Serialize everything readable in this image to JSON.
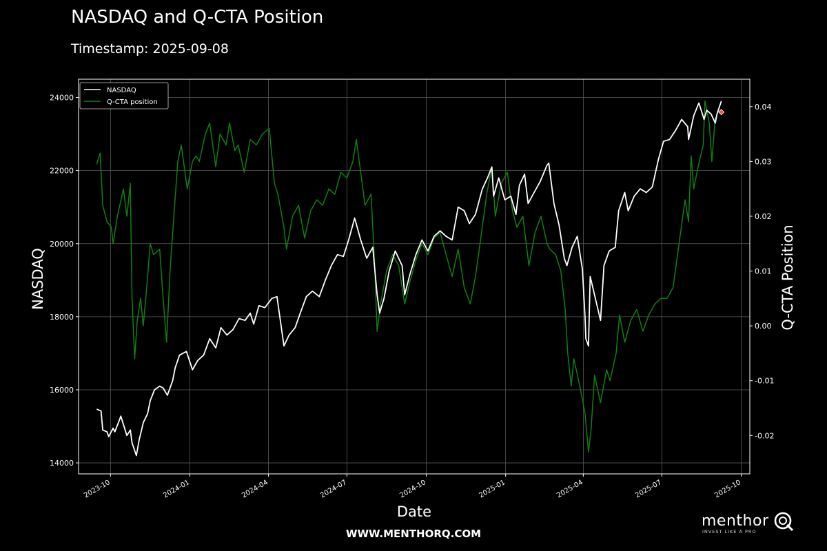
{
  "header": {
    "title": "NASDAQ and Q-CTA Position",
    "subtitle": "Timestamp: 2025-09-08"
  },
  "footer": {
    "url": "WWW.MENTHORQ.COM",
    "brand_name": "menthor",
    "brand_tagline": "INVEST LIKE A PRO"
  },
  "colors": {
    "background": "#000000",
    "nasdaq": "#ffffff",
    "cta": "#108010",
    "grid": "#5a5a5a",
    "marker": "#e8574f"
  },
  "chart_data": {
    "type": "line",
    "xlabel": "Date",
    "ylabel_left": "NASDAQ",
    "ylabel_right": "Q-CTA Position",
    "x_range": [
      "2023-08-25",
      "2025-10-11"
    ],
    "ylim_left": [
      13700,
      24500
    ],
    "ylim_right": [
      -0.027,
      0.045
    ],
    "x_ticks": [
      "2023-10",
      "2024-01",
      "2024-04",
      "2024-07",
      "2024-10",
      "2025-01",
      "2025-04",
      "2025-07",
      "2025-10"
    ],
    "y_ticks_left": [
      "14000",
      "16000",
      "18000",
      "20000",
      "22000",
      "24000"
    ],
    "y_ticks_right": [
      "-0.02",
      "-0.01",
      "0.00",
      "0.01",
      "0.02",
      "0.03",
      "0.04"
    ],
    "grid": true,
    "legend": {
      "position": "top-left",
      "entries": [
        "NASDAQ",
        "Q-CTA position"
      ]
    },
    "series": [
      {
        "name": "NASDAQ",
        "axis": "left",
        "points": [
          [
            "2023-09-15",
            15470
          ],
          [
            "2023-09-20",
            15420
          ],
          [
            "2023-09-22",
            14900
          ],
          [
            "2023-09-27",
            14850
          ],
          [
            "2023-09-29",
            14720
          ],
          [
            "2023-10-04",
            14950
          ],
          [
            "2023-10-06",
            14850
          ],
          [
            "2023-10-11",
            15150
          ],
          [
            "2023-10-13",
            15280
          ],
          [
            "2023-10-18",
            14900
          ],
          [
            "2023-10-20",
            14750
          ],
          [
            "2023-10-24",
            14900
          ],
          [
            "2023-10-26",
            14550
          ],
          [
            "2023-10-31",
            14200
          ],
          [
            "2023-11-03",
            14600
          ],
          [
            "2023-11-08",
            15100
          ],
          [
            "2023-11-13",
            15350
          ],
          [
            "2023-11-16",
            15700
          ],
          [
            "2023-11-21",
            16000
          ],
          [
            "2023-11-27",
            16100
          ],
          [
            "2023-12-01",
            16050
          ],
          [
            "2023-12-06",
            15850
          ],
          [
            "2023-12-12",
            16250
          ],
          [
            "2023-12-15",
            16600
          ],
          [
            "2023-12-20",
            16950
          ],
          [
            "2023-12-28",
            17050
          ],
          [
            "2024-01-04",
            16550
          ],
          [
            "2024-01-10",
            16800
          ],
          [
            "2024-01-17",
            16950
          ],
          [
            "2024-01-24",
            17400
          ],
          [
            "2024-01-31",
            17150
          ],
          [
            "2024-02-06",
            17700
          ],
          [
            "2024-02-13",
            17500
          ],
          [
            "2024-02-20",
            17650
          ],
          [
            "2024-02-27",
            17950
          ],
          [
            "2024-03-05",
            17900
          ],
          [
            "2024-03-11",
            18100
          ],
          [
            "2024-03-15",
            17800
          ],
          [
            "2024-03-21",
            18300
          ],
          [
            "2024-03-28",
            18250
          ],
          [
            "2024-04-05",
            18500
          ],
          [
            "2024-04-11",
            18550
          ],
          [
            "2024-04-19",
            17200
          ],
          [
            "2024-04-25",
            17500
          ],
          [
            "2024-05-02",
            17700
          ],
          [
            "2024-05-08",
            18100
          ],
          [
            "2024-05-15",
            18550
          ],
          [
            "2024-05-22",
            18700
          ],
          [
            "2024-05-30",
            18550
          ],
          [
            "2024-06-06",
            19000
          ],
          [
            "2024-06-13",
            19400
          ],
          [
            "2024-06-20",
            19700
          ],
          [
            "2024-06-27",
            19650
          ],
          [
            "2024-07-03",
            20100
          ],
          [
            "2024-07-10",
            20700
          ],
          [
            "2024-07-17",
            20100
          ],
          [
            "2024-07-24",
            19600
          ],
          [
            "2024-07-31",
            19900
          ],
          [
            "2024-08-05",
            18600
          ],
          [
            "2024-08-08",
            18100
          ],
          [
            "2024-08-13",
            18500
          ],
          [
            "2024-08-19",
            19250
          ],
          [
            "2024-08-26",
            19800
          ],
          [
            "2024-09-03",
            19400
          ],
          [
            "2024-09-06",
            18600
          ],
          [
            "2024-09-12",
            19150
          ],
          [
            "2024-09-19",
            19700
          ],
          [
            "2024-09-26",
            20100
          ],
          [
            "2024-10-03",
            19800
          ],
          [
            "2024-10-10",
            20200
          ],
          [
            "2024-10-17",
            20350
          ],
          [
            "2024-10-24",
            20200
          ],
          [
            "2024-10-31",
            20100
          ],
          [
            "2024-11-07",
            21000
          ],
          [
            "2024-11-14",
            20900
          ],
          [
            "2024-11-20",
            20550
          ],
          [
            "2024-11-27",
            20800
          ],
          [
            "2024-12-05",
            21500
          ],
          [
            "2024-12-11",
            21800
          ],
          [
            "2024-12-16",
            22100
          ],
          [
            "2024-12-18",
            21300
          ],
          [
            "2024-12-24",
            21800
          ],
          [
            "2024-12-31",
            21200
          ],
          [
            "2025-01-07",
            21300
          ],
          [
            "2025-01-13",
            20800
          ],
          [
            "2025-01-17",
            21600
          ],
          [
            "2025-01-23",
            21900
          ],
          [
            "2025-01-27",
            21100
          ],
          [
            "2025-02-03",
            21400
          ],
          [
            "2025-02-10",
            21700
          ],
          [
            "2025-02-18",
            22150
          ],
          [
            "2025-02-20",
            22200
          ],
          [
            "2025-02-26",
            21100
          ],
          [
            "2025-03-04",
            20500
          ],
          [
            "2025-03-10",
            19600
          ],
          [
            "2025-03-13",
            19400
          ],
          [
            "2025-03-19",
            19900
          ],
          [
            "2025-03-25",
            20200
          ],
          [
            "2025-03-31",
            19300
          ],
          [
            "2025-04-03",
            18000
          ],
          [
            "2025-04-04",
            17400
          ],
          [
            "2025-04-07",
            17200
          ],
          [
            "2025-04-09",
            19100
          ],
          [
            "2025-04-15",
            18500
          ],
          [
            "2025-04-21",
            17900
          ],
          [
            "2025-04-25",
            19400
          ],
          [
            "2025-05-01",
            19800
          ],
          [
            "2025-05-08",
            19900
          ],
          [
            "2025-05-12",
            20900
          ],
          [
            "2025-05-19",
            21400
          ],
          [
            "2025-05-23",
            20900
          ],
          [
            "2025-05-30",
            21300
          ],
          [
            "2025-06-06",
            21500
          ],
          [
            "2025-06-13",
            21400
          ],
          [
            "2025-06-20",
            21550
          ],
          [
            "2025-06-27",
            22300
          ],
          [
            "2025-07-03",
            22800
          ],
          [
            "2025-07-10",
            22850
          ],
          [
            "2025-07-17",
            23100
          ],
          [
            "2025-07-24",
            23400
          ],
          [
            "2025-07-31",
            23200
          ],
          [
            "2025-08-01",
            22850
          ],
          [
            "2025-08-07",
            23500
          ],
          [
            "2025-08-13",
            23850
          ],
          [
            "2025-08-19",
            23400
          ],
          [
            "2025-08-22",
            23650
          ],
          [
            "2025-08-27",
            23550
          ],
          [
            "2025-09-01",
            23300
          ],
          [
            "2025-09-03",
            23550
          ],
          [
            "2025-09-08",
            23900
          ]
        ]
      },
      {
        "name": "Q-CTA position",
        "axis": "right",
        "points": [
          [
            "2023-09-15",
            0.0295
          ],
          [
            "2023-09-19",
            0.0315
          ],
          [
            "2023-09-22",
            0.022
          ],
          [
            "2023-09-27",
            0.019
          ],
          [
            "2023-10-02",
            0.018
          ],
          [
            "2023-10-04",
            0.015
          ],
          [
            "2023-10-09",
            0.02
          ],
          [
            "2023-10-16",
            0.025
          ],
          [
            "2023-10-20",
            0.02
          ],
          [
            "2023-10-24",
            0.026
          ],
          [
            "2023-10-26",
            0.005
          ],
          [
            "2023-10-29",
            -0.006
          ],
          [
            "2023-11-01",
            0.001
          ],
          [
            "2023-11-05",
            0.005
          ],
          [
            "2023-11-08",
            -0.0
          ],
          [
            "2023-11-12",
            0.007
          ],
          [
            "2023-11-16",
            0.015
          ],
          [
            "2023-11-20",
            0.013
          ],
          [
            "2023-11-27",
            0.014
          ],
          [
            "2023-12-01",
            0.005
          ],
          [
            "2023-12-05",
            -0.003
          ],
          [
            "2023-12-09",
            0.01
          ],
          [
            "2023-12-13",
            0.019
          ],
          [
            "2023-12-18",
            0.03
          ],
          [
            "2023-12-22",
            0.033
          ],
          [
            "2023-12-29",
            0.025
          ],
          [
            "2024-01-04",
            0.03
          ],
          [
            "2024-01-08",
            0.031
          ],
          [
            "2024-01-12",
            0.03
          ],
          [
            "2024-01-19",
            0.035
          ],
          [
            "2024-01-24",
            0.037
          ],
          [
            "2024-01-31",
            0.029
          ],
          [
            "2024-02-05",
            0.035
          ],
          [
            "2024-02-12",
            0.033
          ],
          [
            "2024-02-16",
            0.037
          ],
          [
            "2024-02-22",
            0.032
          ],
          [
            "2024-02-26",
            0.033
          ],
          [
            "2024-03-04",
            0.028
          ],
          [
            "2024-03-11",
            0.034
          ],
          [
            "2024-03-18",
            0.033
          ],
          [
            "2024-03-25",
            0.035
          ],
          [
            "2024-04-02",
            0.036
          ],
          [
            "2024-04-08",
            0.026
          ],
          [
            "2024-04-12",
            0.024
          ],
          [
            "2024-04-19",
            0.018
          ],
          [
            "2024-04-22",
            0.014
          ],
          [
            "2024-04-29",
            0.02
          ],
          [
            "2024-05-06",
            0.022
          ],
          [
            "2024-05-13",
            0.016
          ],
          [
            "2024-05-20",
            0.021
          ],
          [
            "2024-05-27",
            0.023
          ],
          [
            "2024-06-03",
            0.022
          ],
          [
            "2024-06-10",
            0.025
          ],
          [
            "2024-06-17",
            0.024
          ],
          [
            "2024-06-24",
            0.028
          ],
          [
            "2024-07-01",
            0.027
          ],
          [
            "2024-07-08",
            0.03
          ],
          [
            "2024-07-12",
            0.034
          ],
          [
            "2024-07-17",
            0.028
          ],
          [
            "2024-07-22",
            0.022
          ],
          [
            "2024-07-29",
            0.024
          ],
          [
            "2024-08-02",
            0.012
          ],
          [
            "2024-08-05",
            -0.001
          ],
          [
            "2024-08-09",
            0.004
          ],
          [
            "2024-08-16",
            0.01
          ],
          [
            "2024-08-23",
            0.013
          ],
          [
            "2024-08-30",
            0.011
          ],
          [
            "2024-09-06",
            0.004
          ],
          [
            "2024-09-12",
            0.008
          ],
          [
            "2024-09-19",
            0.012
          ],
          [
            "2024-09-26",
            0.015
          ],
          [
            "2024-10-03",
            0.013
          ],
          [
            "2024-10-10",
            0.016
          ],
          [
            "2024-10-17",
            0.017
          ],
          [
            "2024-10-24",
            0.013
          ],
          [
            "2024-10-31",
            0.009
          ],
          [
            "2024-11-07",
            0.014
          ],
          [
            "2024-11-14",
            0.007
          ],
          [
            "2024-11-21",
            0.004
          ],
          [
            "2024-11-27",
            0.009
          ],
          [
            "2024-12-04",
            0.017
          ],
          [
            "2024-12-10",
            0.024
          ],
          [
            "2024-12-16",
            0.029
          ],
          [
            "2024-12-20",
            0.02
          ],
          [
            "2024-12-27",
            0.026
          ],
          [
            "2025-01-03",
            0.028
          ],
          [
            "2025-01-09",
            0.021
          ],
          [
            "2025-01-14",
            0.018
          ],
          [
            "2025-01-21",
            0.02
          ],
          [
            "2025-01-28",
            0.011
          ],
          [
            "2025-02-04",
            0.017
          ],
          [
            "2025-02-11",
            0.02
          ],
          [
            "2025-02-18",
            0.015
          ],
          [
            "2025-02-21",
            0.014
          ],
          [
            "2025-02-28",
            0.013
          ],
          [
            "2025-03-06",
            0.01
          ],
          [
            "2025-03-11",
            0.003
          ],
          [
            "2025-03-14",
            -0.005
          ],
          [
            "2025-03-18",
            -0.011
          ],
          [
            "2025-03-21",
            -0.006
          ],
          [
            "2025-03-28",
            -0.011
          ],
          [
            "2025-04-03",
            -0.016
          ],
          [
            "2025-04-07",
            -0.023
          ],
          [
            "2025-04-10",
            -0.019
          ],
          [
            "2025-04-14",
            -0.009
          ],
          [
            "2025-04-21",
            -0.014
          ],
          [
            "2025-04-28",
            -0.008
          ],
          [
            "2025-05-02",
            -0.01
          ],
          [
            "2025-05-09",
            -0.005
          ],
          [
            "2025-05-13",
            0.002
          ],
          [
            "2025-05-19",
            -0.003
          ],
          [
            "2025-05-26",
            0.001
          ],
          [
            "2025-06-02",
            0.003
          ],
          [
            "2025-06-09",
            -0.001
          ],
          [
            "2025-06-16",
            0.002
          ],
          [
            "2025-06-23",
            0.004
          ],
          [
            "2025-06-30",
            0.005
          ],
          [
            "2025-07-07",
            0.005
          ],
          [
            "2025-07-14",
            0.007
          ],
          [
            "2025-07-21",
            0.015
          ],
          [
            "2025-07-28",
            0.023
          ],
          [
            "2025-08-01",
            0.019
          ],
          [
            "2025-08-04",
            0.031
          ],
          [
            "2025-08-07",
            0.025
          ],
          [
            "2025-08-12",
            0.029
          ],
          [
            "2025-08-18",
            0.033
          ],
          [
            "2025-08-20",
            0.041
          ],
          [
            "2025-08-25",
            0.037
          ],
          [
            "2025-08-28",
            0.03
          ],
          [
            "2025-09-01",
            0.038
          ],
          [
            "2025-09-03",
            0.038
          ]
        ]
      }
    ],
    "marker": {
      "date": "2025-09-08",
      "value": 0.039,
      "axis": "right"
    }
  }
}
